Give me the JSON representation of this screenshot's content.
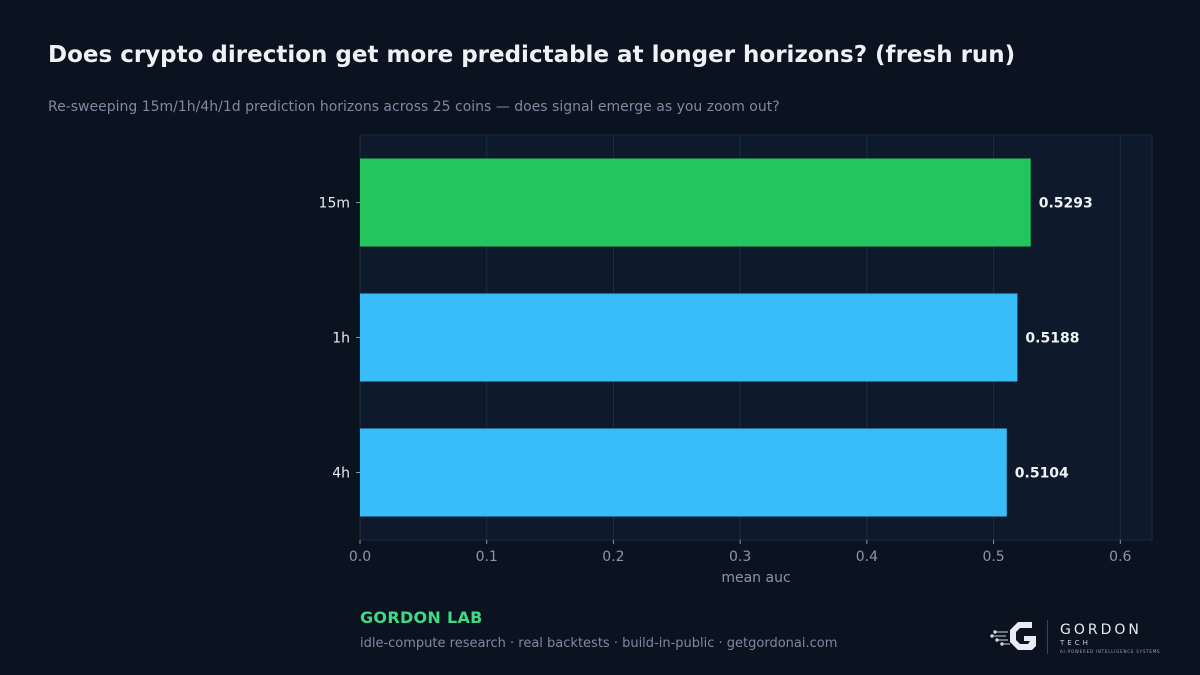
{
  "header": {
    "title": "Does crypto direction get more predictable at longer horizons? (fresh run)",
    "subtitle": "Re-sweeping 15m/1h/4h/1d prediction horizons across 25 coins — does signal emerge as you zoom out?"
  },
  "chart_data": {
    "type": "bar",
    "orientation": "horizontal",
    "categories": [
      "15m",
      "1h",
      "4h"
    ],
    "values": [
      0.5293,
      0.5188,
      0.5104
    ],
    "value_labels": [
      "0.5293",
      "0.5188",
      "0.5104"
    ],
    "colors": [
      "#22c55e",
      "#38bdf8",
      "#38bdf8"
    ],
    "xlabel": "mean auc",
    "xlim": [
      0,
      0.625
    ],
    "xticks": [
      0.0,
      0.1,
      0.2,
      0.3,
      0.4,
      0.5,
      0.6
    ],
    "xtick_labels": [
      "0.0",
      "0.1",
      "0.2",
      "0.3",
      "0.4",
      "0.5",
      "0.6"
    ],
    "grid": "vertical",
    "background": "#0e1a2b"
  },
  "footer": {
    "brand": "GORDON LAB",
    "tagline": "idle-compute research · real backtests · build-in-public · getgordonai.com"
  },
  "logo": {
    "name": "GORDON",
    "sub": "TECH",
    "tag": "AI-POWERED INTELLIGENCE SYSTEMS",
    "icon": "gordon-g-logo-icon"
  }
}
